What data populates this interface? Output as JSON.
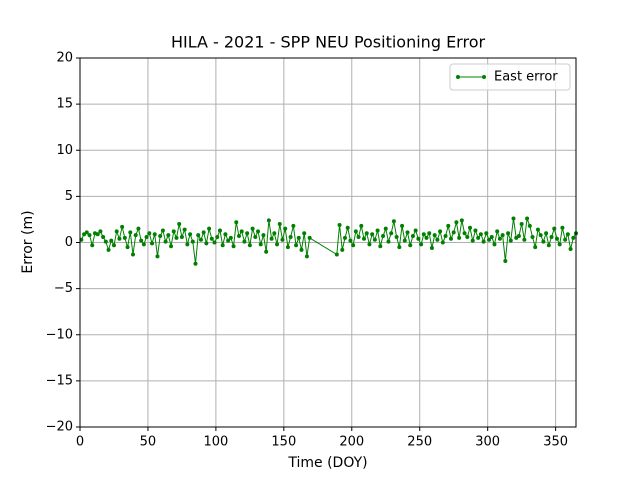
{
  "chart_data": {
    "type": "line",
    "title": "HILA - 2021 - SPP NEU Positioning Error",
    "xlabel": "Time (DOY)",
    "ylabel": "Error (m)",
    "x": [
      1,
      3,
      5,
      7,
      9,
      11,
      13,
      15,
      17,
      19,
      21,
      23,
      25,
      27,
      29,
      31,
      33,
      35,
      37,
      39,
      41,
      43,
      45,
      47,
      49,
      51,
      53,
      55,
      57,
      59,
      61,
      63,
      65,
      67,
      69,
      71,
      73,
      75,
      77,
      79,
      81,
      83,
      85,
      87,
      89,
      91,
      93,
      95,
      97,
      99,
      101,
      103,
      105,
      107,
      109,
      111,
      113,
      115,
      117,
      119,
      121,
      123,
      125,
      127,
      129,
      131,
      133,
      135,
      137,
      139,
      141,
      143,
      145,
      147,
      149,
      151,
      153,
      155,
      157,
      159,
      161,
      163,
      165,
      167,
      169,
      189,
      191,
      193,
      195,
      197,
      199,
      201,
      203,
      205,
      207,
      209,
      211,
      213,
      215,
      217,
      219,
      221,
      223,
      225,
      227,
      229,
      231,
      233,
      235,
      237,
      239,
      241,
      243,
      245,
      247,
      249,
      251,
      253,
      255,
      257,
      259,
      261,
      263,
      265,
      267,
      269,
      271,
      273,
      275,
      277,
      279,
      281,
      283,
      285,
      287,
      289,
      291,
      293,
      295,
      297,
      299,
      301,
      303,
      305,
      307,
      309,
      311,
      313,
      315,
      317,
      319,
      321,
      323,
      325,
      327,
      329,
      331,
      333,
      335,
      337,
      339,
      341,
      343,
      345,
      347,
      349,
      351,
      353,
      355,
      357,
      359,
      361,
      363,
      365
    ],
    "series": [
      {
        "name": "East error",
        "color": "#008000",
        "values": [
          0.3,
          0.9,
          1.1,
          0.8,
          -0.3,
          1.0,
          0.9,
          1.2,
          0.6,
          0.1,
          -0.8,
          0.2,
          -0.3,
          1.2,
          0.4,
          1.7,
          0.5,
          -0.5,
          1.1,
          -1.3,
          0.8,
          1.5,
          0.2,
          -0.2,
          0.6,
          1.0,
          -0.1,
          0.9,
          -1.5,
          0.7,
          1.3,
          0.1,
          0.8,
          -0.4,
          1.2,
          0.5,
          2.0,
          0.6,
          1.4,
          -0.2,
          0.9,
          0.1,
          -2.3,
          0.8,
          0.3,
          1.1,
          -0.1,
          1.5,
          0.4,
          0.0,
          0.6,
          1.3,
          -0.3,
          0.9,
          0.2,
          0.5,
          -0.4,
          2.2,
          0.7,
          1.2,
          0.1,
          1.0,
          -0.3,
          1.5,
          0.6,
          1.2,
          -0.2,
          0.8,
          -1.0,
          2.4,
          0.4,
          1.0,
          -0.2,
          2.0,
          0.3,
          1.5,
          -0.5,
          0.6,
          1.8,
          -0.3,
          0.5,
          -0.8,
          1.0,
          -1.5,
          0.5,
          -1.3,
          1.9,
          -0.8,
          0.5,
          1.6,
          0.2,
          -0.3,
          1.2,
          0.6,
          1.8,
          0.4,
          1.0,
          -0.2,
          0.9,
          0.3,
          1.3,
          -0.4,
          0.7,
          1.5,
          0.1,
          1.0,
          2.3,
          0.6,
          -0.5,
          1.8,
          0.2,
          1.1,
          -0.3,
          0.7,
          1.3,
          0.4,
          -0.2,
          0.9,
          0.5,
          1.0,
          -0.6,
          0.8,
          0.3,
          1.2,
          0.0,
          0.7,
          1.8,
          0.4,
          1.1,
          2.2,
          0.5,
          2.4,
          1.0,
          0.6,
          1.6,
          0.2,
          1.3,
          0.5,
          0.9,
          0.1,
          1.0,
          0.3,
          0.6,
          -0.2,
          1.2,
          0.4,
          0.8,
          -2.0,
          1.0,
          0.2,
          2.6,
          0.5,
          0.7,
          2.0,
          0.3,
          2.6,
          1.8,
          0.6,
          -0.5,
          1.4,
          0.8,
          0.1,
          1.0,
          -0.3,
          0.6,
          1.5,
          0.4,
          -0.2,
          1.6,
          0.3,
          0.9,
          -0.7,
          0.5,
          1.0
        ]
      }
    ],
    "xlim": [
      0,
      365
    ],
    "xticks": [
      0,
      50,
      100,
      150,
      200,
      250,
      300,
      350
    ],
    "ylim": [
      -20,
      20
    ],
    "yticks": [
      {
        "value": -20,
        "label": "−20"
      },
      {
        "value": -15,
        "label": "−15"
      },
      {
        "value": -10,
        "label": "−10"
      },
      {
        "value": -5,
        "label": "−5"
      },
      0,
      5,
      10,
      15,
      20
    ],
    "grid": true,
    "legend": "upper right"
  }
}
